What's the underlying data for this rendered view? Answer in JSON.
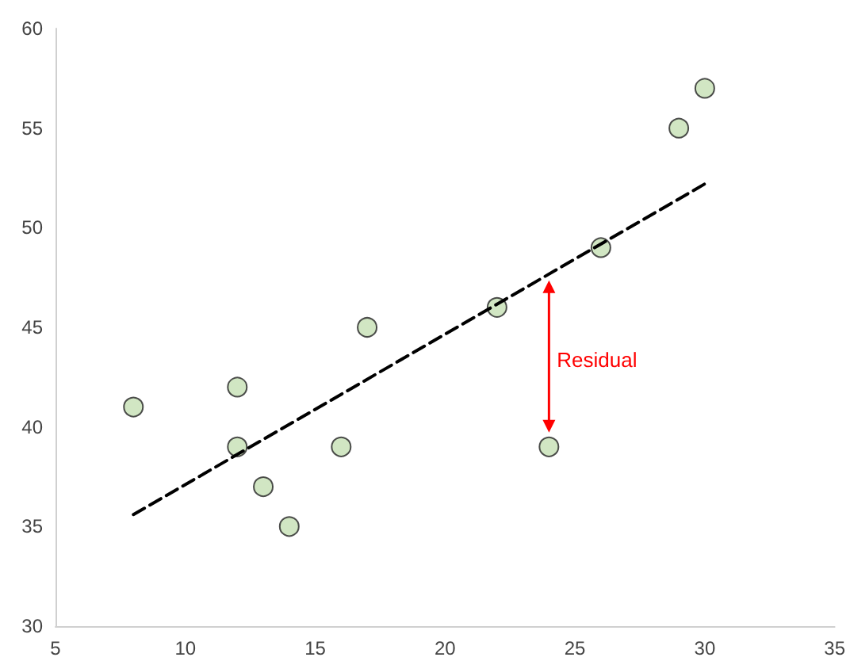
{
  "chart_data": {
    "type": "scatter",
    "xlim": [
      5,
      35
    ],
    "xticks": [
      5,
      10,
      15,
      20,
      25,
      30,
      35
    ],
    "ylim": [
      30,
      60
    ],
    "yticks": [
      30,
      35,
      40,
      45,
      50,
      55,
      60
    ],
    "grid": false,
    "marker": "circle",
    "x": [
      8,
      12,
      12,
      13,
      14,
      16,
      17,
      22,
      24,
      26,
      29,
      30
    ],
    "series": [
      {
        "color": "#c5e0b4",
        "values": [
          41,
          42,
          39,
          37,
          35,
          39,
          45,
          46,
          39,
          49,
          55,
          57
        ]
      },
      {
        "type": "line",
        "color": "#000000",
        "line_style": "dashed",
        "marker": "none",
        "x": [
          8,
          30
        ],
        "values": [
          35.6,
          52.2
        ]
      }
    ],
    "annotations": [
      "Residual"
    ]
  }
}
